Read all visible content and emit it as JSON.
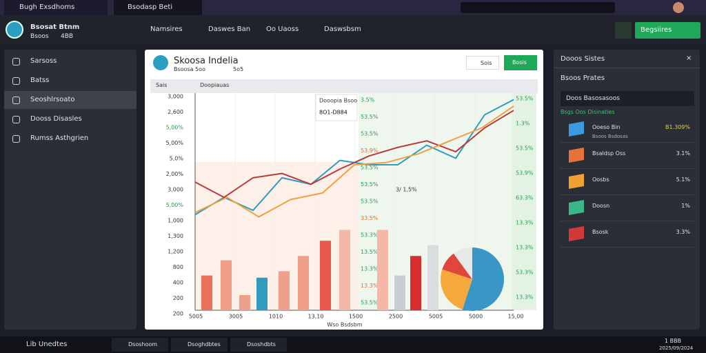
{
  "browser": {
    "tabs": [
      "Bugh Exsdhoms",
      "Bsodasp Beti"
    ]
  },
  "header": {
    "user_name": "Bsosat Btnm",
    "user_sub": "Bsoos",
    "user_code": "4BB",
    "nav": [
      "Namsires",
      "Daswes Ban",
      "Oo Uaoss",
      "Daswsbsm"
    ],
    "button": "Begsiires"
  },
  "sidebar": {
    "items": [
      "Sarsoss",
      "Batss",
      "Seoshlrsoato",
      "Dooss Disasles",
      "Rumss Asthgrien"
    ]
  },
  "panel": {
    "title": "Skoosa Indelia",
    "subtitle": "Bsoosa 5oo",
    "subtitle_code": "5o5",
    "buttons": [
      "Sois",
      "Bosis"
    ],
    "table_header": [
      "Sais",
      "Doopiauas"
    ]
  },
  "chart": {
    "type": "line",
    "ylim": [
      0,
      100
    ],
    "y_labels": [
      "3,000",
      "2,600",
      "5,00%",
      "5,00%",
      "5,0%",
      "2,00%",
      "3,000",
      "5,00%",
      "1,000",
      "1,300",
      "1,200",
      "800",
      "400",
      "200",
      "200"
    ],
    "x_labels": [
      "5005",
      "3005",
      "1010",
      "13,10",
      "1500",
      "2500",
      "5005",
      "5000",
      "15,00"
    ],
    "x_title": "Wso Bsdsbm",
    "tooltip": {
      "title": "Dooopia Bsoo",
      "value": "8O1-D884"
    },
    "annotation": "3/ 1,5%",
    "mid_labels": [
      "3.5%",
      "53.5%",
      "53.5%",
      "53.9%",
      "53.5%",
      "53.5%",
      "53.5%",
      "33.5%",
      "53.3%",
      "13.5%",
      "13.3%",
      "13.3%",
      "53.5%"
    ],
    "right_labels": [
      "53.5%",
      "1.3%",
      "53.5%",
      "53.9%",
      "63.3%",
      "13.3%",
      "13.3%",
      "53.3%",
      "13.3%"
    ],
    "series": [
      {
        "name": "teal",
        "color": "#2f9bbd",
        "values": [
          44,
          52,
          46,
          61,
          58,
          69,
          67,
          67,
          76,
          70,
          90,
          97
        ]
      },
      {
        "name": "red",
        "color": "#b83a3a",
        "values": [
          59,
          52,
          61,
          63,
          58,
          65,
          71,
          75,
          78,
          73,
          84,
          92
        ]
      },
      {
        "name": "orange",
        "color": "#f0a040",
        "values": [
          45,
          52,
          43,
          51,
          54,
          67,
          68,
          72,
          78,
          84,
          94
        ]
      }
    ],
    "bars": {
      "values": [
        16,
        23,
        7,
        15,
        18,
        25,
        32,
        37,
        37,
        16,
        25,
        30
      ],
      "colors": [
        "#e8735a",
        "#f0a08a",
        "#f0a08a",
        "#2f9bbd",
        "#f0a08a",
        "#f0a08a",
        "#e85a4f",
        "#f5b8a8",
        "#f5b8a8",
        "#c9ced3",
        "#d62f2f",
        "#d9dde0"
      ]
    },
    "pie": {
      "values": [
        55,
        25,
        10,
        10
      ],
      "colors": [
        "#3a96c4",
        "#f5a93a",
        "#e0463a",
        "#e8e8e8"
      ]
    }
  },
  "right_panel": {
    "title": "Dooos Sistes",
    "section": "Bsoos Prates",
    "search": "Doos Basosasoos",
    "subtitle": "Bsgs Oos Disinaties",
    "items": [
      {
        "name": "Ooeso Bin",
        "sub": "Bsoos Bsdosas",
        "value": "B1.309%",
        "color": "#3a9be0"
      },
      {
        "name": "Bsaldsp Oss",
        "value": "3.1%",
        "color": "#e8733a"
      },
      {
        "name": "Oosbs",
        "value": "5.1%",
        "color": "#f0a030"
      },
      {
        "name": "Doosn",
        "value": "1%",
        "color": "#3ab88a"
      },
      {
        "name": "Bsosk",
        "value": "3.3%",
        "color": "#d23a3a"
      }
    ]
  },
  "taskbar": {
    "search": "Lib Unedtes",
    "apps": [
      "Dsoshoom",
      "Dsoghdbtes",
      "Dsoshdbts"
    ],
    "time": "1 BBB",
    "date": "2025/09/2024"
  }
}
